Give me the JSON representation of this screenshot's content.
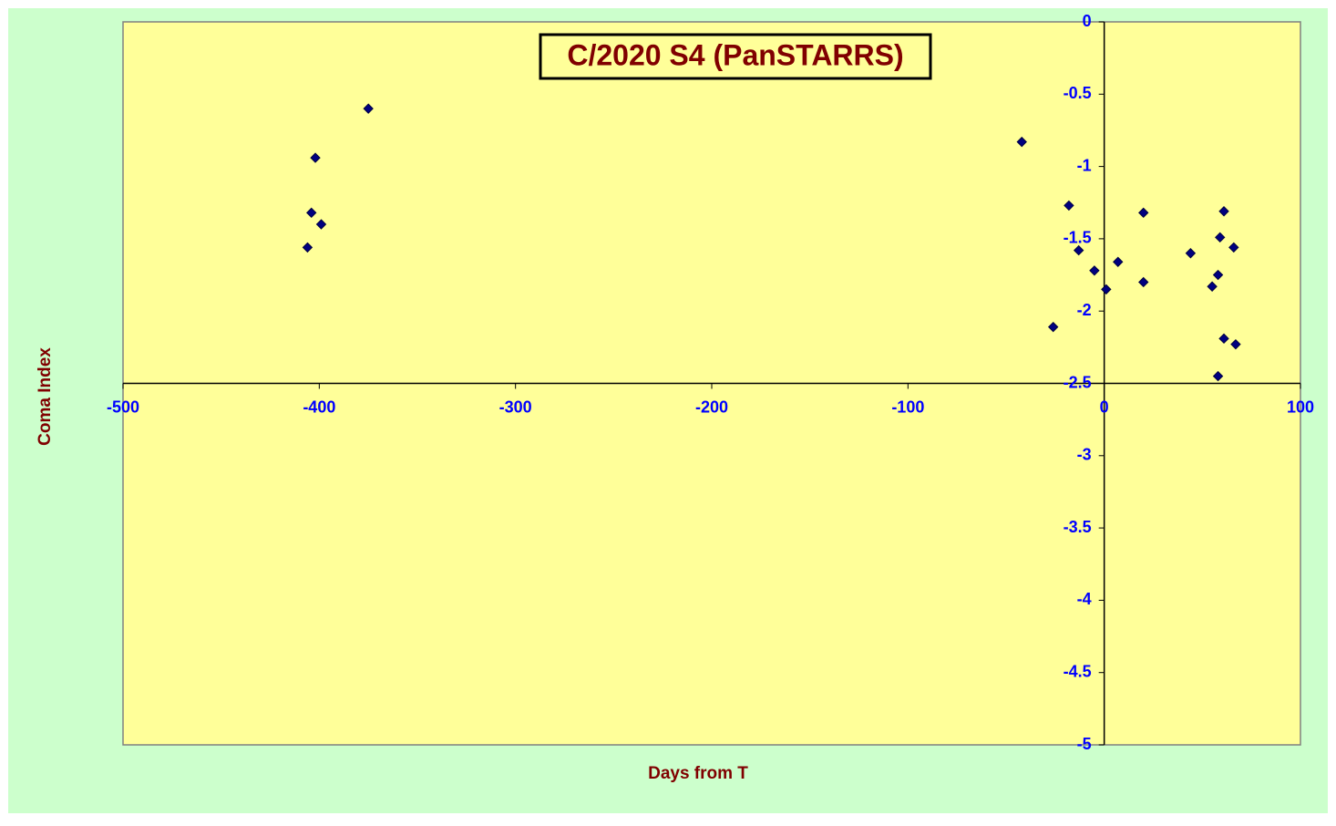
{
  "chart_data": {
    "type": "scatter",
    "title": "C/2020 S4 (PanSTARRS)",
    "x_label": "Days from T",
    "y_label": "Coma Index",
    "xlim": [
      -500,
      100
    ],
    "xticks": [
      -500,
      -400,
      -300,
      -200,
      -100,
      0,
      100
    ],
    "ylim": [
      -5,
      0
    ],
    "yticks": [
      0,
      -0.5,
      -1,
      -1.5,
      -2,
      -2.5,
      -3,
      -3.5,
      -4,
      -4.5,
      -5
    ],
    "x_axis_at": -2.5,
    "y_axis_at": 0,
    "series": [
      {
        "color": "#000080",
        "x": [
          -406,
          -404,
          -402,
          -399,
          -375,
          -42,
          -26,
          -18,
          -13,
          -5,
          1,
          7,
          20,
          20,
          44,
          55,
          58,
          59,
          58,
          61,
          61,
          66,
          67
        ],
        "values": [
          -1.56,
          -1.32,
          -0.94,
          -1.4,
          -0.6,
          -0.83,
          -2.11,
          -1.27,
          -1.58,
          -1.72,
          -1.85,
          -1.66,
          -1.32,
          -1.8,
          -1.6,
          -1.83,
          -1.75,
          -1.49,
          -2.45,
          -1.31,
          -2.19,
          -1.56,
          -2.23
        ]
      }
    ]
  }
}
